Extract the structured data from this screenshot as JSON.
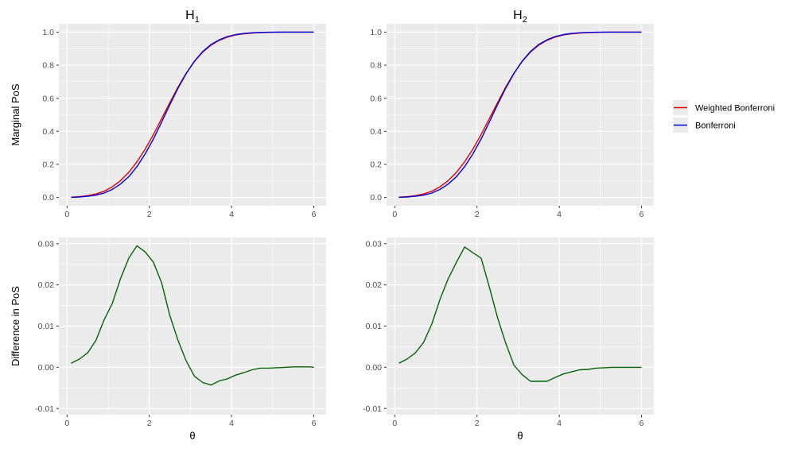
{
  "chart_data": [
    {
      "type": "line",
      "title": "H",
      "title_sub": "1",
      "xlabel": "",
      "ylabel": "Marginal PoS",
      "xlim": [
        -0.2,
        6.3
      ],
      "ylim": [
        -0.05,
        1.05
      ],
      "xticks": [
        0,
        2,
        4,
        6
      ],
      "yticks": [
        0.0,
        0.2,
        0.4,
        0.6,
        0.8,
        1.0
      ],
      "ytick_labels": [
        "0.0",
        "0.2",
        "0.4",
        "0.6",
        "0.8",
        "1.0"
      ],
      "series": [
        {
          "name": "Weighted Bonferroni",
          "color": "#e00000",
          "x": [
            0.1,
            0.3,
            0.5,
            0.7,
            0.9,
            1.1,
            1.3,
            1.5,
            1.7,
            1.9,
            2.1,
            2.3,
            2.5,
            2.7,
            2.9,
            3.1,
            3.3,
            3.5,
            3.7,
            3.9,
            4.1,
            4.3,
            4.5,
            4.7,
            4.9,
            5.1,
            5.3,
            5.5,
            5.7,
            5.9,
            6.0
          ],
          "y": [
            0.002,
            0.005,
            0.011,
            0.021,
            0.038,
            0.065,
            0.102,
            0.152,
            0.216,
            0.293,
            0.381,
            0.477,
            0.574,
            0.668,
            0.752,
            0.823,
            0.879,
            0.921,
            0.95,
            0.97,
            0.983,
            0.99,
            0.994,
            0.997,
            0.998,
            0.999,
            1.0,
            1.0,
            1.0,
            1.0,
            1.0
          ]
        },
        {
          "name": "Bonferroni",
          "color": "#0000e0",
          "x": [
            0.1,
            0.3,
            0.5,
            0.7,
            0.9,
            1.1,
            1.3,
            1.5,
            1.7,
            1.9,
            2.1,
            2.3,
            2.5,
            2.7,
            2.9,
            3.1,
            3.3,
            3.5,
            3.7,
            3.9,
            4.1,
            4.3,
            4.5,
            4.7,
            4.9,
            5.1,
            5.3,
            5.5,
            5.7,
            5.9,
            6.0
          ],
          "y": [
            0.001,
            0.003,
            0.007,
            0.014,
            0.027,
            0.049,
            0.081,
            0.126,
            0.187,
            0.264,
            0.354,
            0.456,
            0.562,
            0.662,
            0.75,
            0.825,
            0.883,
            0.925,
            0.953,
            0.973,
            0.985,
            0.992,
            0.996,
            0.998,
            0.999,
            1.0,
            1.0,
            1.0,
            1.0,
            1.0,
            1.0
          ]
        }
      ]
    },
    {
      "type": "line",
      "title": "H",
      "title_sub": "2",
      "xlabel": "",
      "ylabel": "",
      "xlim": [
        -0.2,
        6.3
      ],
      "ylim": [
        -0.05,
        1.05
      ],
      "xticks": [
        0,
        2,
        4,
        6
      ],
      "yticks": [
        0.0,
        0.2,
        0.4,
        0.6,
        0.8,
        1.0
      ],
      "ytick_labels": [
        "0.0",
        "0.2",
        "0.4",
        "0.6",
        "0.8",
        "1.0"
      ],
      "series": [
        {
          "name": "Weighted Bonferroni",
          "color": "#e00000",
          "x": [
            0.1,
            0.3,
            0.5,
            0.7,
            0.9,
            1.1,
            1.3,
            1.5,
            1.7,
            1.9,
            2.1,
            2.3,
            2.5,
            2.7,
            2.9,
            3.1,
            3.3,
            3.5,
            3.7,
            3.9,
            4.1,
            4.3,
            4.5,
            4.7,
            4.9,
            5.1,
            5.3,
            5.5,
            5.7,
            5.9,
            6.0
          ],
          "y": [
            0.002,
            0.005,
            0.011,
            0.021,
            0.038,
            0.065,
            0.102,
            0.152,
            0.216,
            0.293,
            0.381,
            0.477,
            0.574,
            0.668,
            0.752,
            0.823,
            0.879,
            0.921,
            0.95,
            0.97,
            0.983,
            0.99,
            0.994,
            0.997,
            0.998,
            0.999,
            1.0,
            1.0,
            1.0,
            1.0,
            1.0
          ]
        },
        {
          "name": "Bonferroni",
          "color": "#0000e0",
          "x": [
            0.1,
            0.3,
            0.5,
            0.7,
            0.9,
            1.1,
            1.3,
            1.5,
            1.7,
            1.9,
            2.1,
            2.3,
            2.5,
            2.7,
            2.9,
            3.1,
            3.3,
            3.5,
            3.7,
            3.9,
            4.1,
            4.3,
            4.5,
            4.7,
            4.9,
            5.1,
            5.3,
            5.5,
            5.7,
            5.9,
            6.0
          ],
          "y": [
            0.001,
            0.003,
            0.007,
            0.014,
            0.027,
            0.049,
            0.081,
            0.126,
            0.187,
            0.264,
            0.354,
            0.456,
            0.562,
            0.662,
            0.75,
            0.825,
            0.883,
            0.925,
            0.953,
            0.973,
            0.985,
            0.992,
            0.996,
            0.998,
            0.999,
            1.0,
            1.0,
            1.0,
            1.0,
            1.0,
            1.0
          ]
        }
      ]
    },
    {
      "type": "line",
      "title": "",
      "title_sub": "",
      "xlabel": "θ",
      "ylabel": "Difference in PoS",
      "xlim": [
        -0.2,
        6.3
      ],
      "ylim": [
        -0.0115,
        0.0315
      ],
      "xticks": [
        0,
        2,
        4,
        6
      ],
      "yticks": [
        -0.01,
        0.0,
        0.01,
        0.02,
        0.03
      ],
      "ytick_labels": [
        "-0.01",
        "0.00",
        "0.01",
        "0.02",
        "0.03"
      ],
      "series": [
        {
          "name": "",
          "color": "#006400",
          "x": [
            0.1,
            0.3,
            0.5,
            0.7,
            0.9,
            1.1,
            1.3,
            1.5,
            1.7,
            1.9,
            2.1,
            2.3,
            2.5,
            2.7,
            2.9,
            3.1,
            3.3,
            3.5,
            3.7,
            3.9,
            4.1,
            4.3,
            4.5,
            4.7,
            4.9,
            5.1,
            5.3,
            5.5,
            5.7,
            5.9,
            6.0
          ],
          "y": [
            0.001,
            0.002,
            0.0035,
            0.0065,
            0.0115,
            0.0155,
            0.0215,
            0.0265,
            0.0295,
            0.028,
            0.0255,
            0.0205,
            0.0125,
            0.0065,
            0.0015,
            -0.0022,
            -0.0037,
            -0.0043,
            -0.0033,
            -0.0028,
            -0.0019,
            -0.0013,
            -0.0006,
            -0.0002,
            -0.0002,
            -0.0001,
            0.0,
            0.0001,
            0.0001,
            0.0001,
            0.0
          ]
        }
      ]
    },
    {
      "type": "line",
      "title": "",
      "title_sub": "",
      "xlabel": "θ",
      "ylabel": "",
      "xlim": [
        -0.2,
        6.3
      ],
      "ylim": [
        -0.0115,
        0.0315
      ],
      "xticks": [
        0,
        2,
        4,
        6
      ],
      "yticks": [
        -0.01,
        0.0,
        0.01,
        0.02,
        0.03
      ],
      "ytick_labels": [
        "-0.01",
        "0.00",
        "0.01",
        "0.02",
        "0.03"
      ],
      "series": [
        {
          "name": "",
          "color": "#006400",
          "x": [
            0.1,
            0.3,
            0.5,
            0.7,
            0.9,
            1.1,
            1.3,
            1.5,
            1.7,
            1.9,
            2.1,
            2.3,
            2.5,
            2.7,
            2.9,
            3.1,
            3.3,
            3.5,
            3.7,
            3.9,
            4.1,
            4.3,
            4.5,
            4.7,
            4.9,
            5.1,
            5.3,
            5.5,
            5.7,
            5.9,
            6.0
          ],
          "y": [
            0.001,
            0.002,
            0.0035,
            0.006,
            0.0105,
            0.0165,
            0.0215,
            0.0255,
            0.0292,
            0.0278,
            0.0265,
            0.0195,
            0.012,
            0.0058,
            0.0005,
            -0.0018,
            -0.0034,
            -0.0034,
            -0.0034,
            -0.0025,
            -0.0016,
            -0.0011,
            -0.0006,
            -0.0005,
            -0.0002,
            -0.0001,
            0.0,
            0.0,
            0.0,
            0.0,
            0.0
          ]
        }
      ]
    }
  ],
  "legend": {
    "position": "right",
    "items": [
      {
        "label": "Weighted Bonferroni",
        "color": "#e00000"
      },
      {
        "label": "Bonferroni",
        "color": "#0000e0"
      }
    ]
  },
  "style": {
    "panel_bg": "#ebebeb",
    "grid_color": "#ffffff"
  }
}
